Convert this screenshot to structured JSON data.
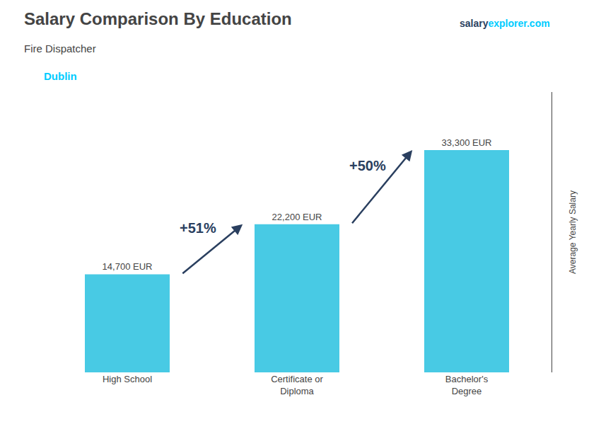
{
  "chart_data": {
    "type": "bar",
    "title": "Salary Comparison By Education",
    "subtitle": "Fire Dispatcher",
    "ylabel": "Average Yearly Salary",
    "categories": [
      "High School",
      "Certificate or\nDiploma",
      "Bachelor's\nDegree"
    ],
    "values": [
      14700,
      22200,
      33300
    ],
    "value_labels": [
      "14,700 EUR",
      "22,200 EUR",
      "33,300 EUR"
    ],
    "data_labels": true,
    "color": "#48cae4",
    "ylim": [
      0,
      42000
    ],
    "tick_labels": "x",
    "grid": false,
    "annotations": [
      {
        "text": "Dublin",
        "color": "#00ccff"
      },
      {
        "text": "salary"
      },
      {
        "text": "explorer.com",
        "color": "#00ccff"
      },
      {
        "text": "+51%",
        "from": 0,
        "to": 1
      },
      {
        "text": "+50%",
        "from": 1,
        "to": 2
      }
    ]
  }
}
